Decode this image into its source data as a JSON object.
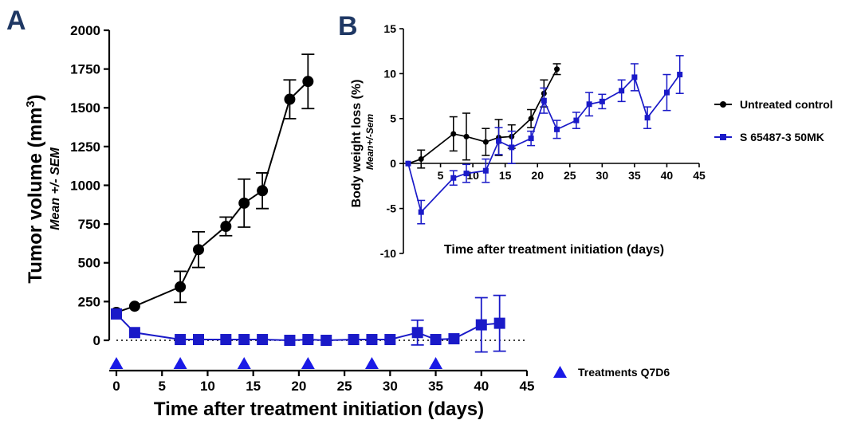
{
  "chart_data": [
    {
      "panel": "A",
      "type": "line",
      "title": "",
      "xlabel": "Time after treatment initiation (days)",
      "ylabel": "Tumor volume (mm",
      "ylabel_sup": "3",
      "ylabel_close": ")",
      "ylabel_sub": "Mean +/- SEM",
      "xlim": [
        0,
        45
      ],
      "ylim": [
        0,
        2000
      ],
      "xticks": [
        "0",
        "5",
        "10",
        "15",
        "20",
        "25",
        "30",
        "35",
        "40",
        "45"
      ],
      "yticks": [
        "0",
        "250",
        "500",
        "750",
        "1000",
        "1250",
        "1500",
        "1750",
        "2000"
      ],
      "reference_line_y": 0,
      "series": [
        {
          "name": "Untreated control",
          "color": "#000000",
          "marker": "circle",
          "x": [
            0,
            2,
            7,
            9,
            12,
            14,
            16,
            19,
            21
          ],
          "y": [
            180,
            220,
            345,
            585,
            735,
            885,
            965,
            1555,
            1670
          ],
          "err": [
            0,
            0,
            100,
            115,
            60,
            155,
            115,
            125,
            175
          ]
        },
        {
          "name": "S 65487-3 50MK",
          "color": "#1a1ac8",
          "marker": "square",
          "x": [
            0,
            2,
            7,
            9,
            12,
            14,
            16,
            19,
            21,
            23,
            26,
            28,
            30,
            33,
            35,
            37,
            40,
            42
          ],
          "y": [
            170,
            50,
            5,
            5,
            5,
            5,
            5,
            0,
            5,
            0,
            5,
            5,
            5,
            50,
            5,
            10,
            100,
            110
          ],
          "err": [
            0,
            0,
            0,
            0,
            0,
            0,
            0,
            0,
            0,
            0,
            0,
            0,
            0,
            80,
            0,
            0,
            175,
            180
          ]
        }
      ],
      "treatment_days": [
        0,
        7,
        14,
        21,
        28,
        35
      ],
      "treatment_label": "Treatments Q7D6",
      "treatment_color": "#1a1ae6"
    },
    {
      "panel": "B",
      "type": "line",
      "title": "",
      "xlabel": "Time after treatment initiation (days)",
      "ylabel": "Body weight loss (%)",
      "ylabel_sub": "Mean+/-Sem",
      "xlim": [
        0,
        45
      ],
      "ylim": [
        -10,
        15
      ],
      "xticks": [
        "5",
        "10",
        "15",
        "20",
        "25",
        "30",
        "35",
        "40",
        "45"
      ],
      "yticks": [
        "-10",
        "-5",
        "0",
        "5",
        "10",
        "15"
      ],
      "series": [
        {
          "name": "Untreated control",
          "color": "#000000",
          "marker": "circle",
          "x": [
            0,
            2,
            7,
            9,
            12,
            14,
            16,
            19,
            21,
            23
          ],
          "y": [
            0,
            0.5,
            3.3,
            3.0,
            2.4,
            2.9,
            3.0,
            5.0,
            7.8,
            10.5
          ],
          "err": [
            0,
            1.0,
            1.9,
            2.6,
            1.5,
            2.0,
            1.3,
            1.0,
            1.5,
            0.6
          ]
        },
        {
          "name": "S 65487-3 50MK",
          "color": "#1a1ac8",
          "marker": "square",
          "x": [
            0,
            2,
            7,
            9,
            12,
            14,
            16,
            19,
            21,
            23,
            26,
            28,
            30,
            33,
            35,
            37,
            40,
            42
          ],
          "y": [
            0,
            -5.4,
            -1.6,
            -1.1,
            -0.8,
            2.5,
            1.8,
            2.8,
            7.0,
            3.8,
            4.8,
            6.6,
            6.9,
            8.1,
            9.6,
            5.1,
            7.9,
            9.9
          ],
          "err": [
            0,
            1.3,
            0.8,
            1.0,
            1.3,
            1.5,
            1.8,
            0.8,
            1.4,
            1.0,
            0.9,
            1.3,
            0.8,
            1.2,
            1.5,
            1.2,
            2.0,
            2.1
          ]
        }
      ],
      "legend": [
        {
          "label": "Untreated control",
          "color": "#000000",
          "marker": "circle"
        },
        {
          "label": "S 65487-3 50MK",
          "color": "#1a1ac8",
          "marker": "square"
        }
      ]
    }
  ]
}
